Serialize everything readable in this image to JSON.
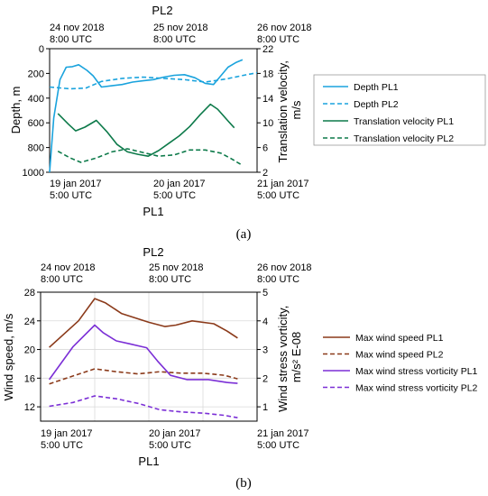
{
  "panel_a": {
    "caption": "(a)",
    "top_axis_label": "PL2",
    "bottom_axis_label": "PL1",
    "top_ticks": [
      {
        "line1": "24 nov 2018",
        "line2": "8:00 UTC"
      },
      {
        "line1": "25 nov 2018",
        "line2": "8:00 UTC"
      },
      {
        "line1": "26 nov 2018",
        "line2": "8:00 UTC"
      }
    ],
    "bottom_ticks": [
      {
        "line1": "19 jan 2017",
        "line2": "5:00 UTC"
      },
      {
        "line1": "20 jan 2017",
        "line2": "5:00 UTC"
      },
      {
        "line1": "21 jan 2017",
        "line2": "5:00 UTC"
      }
    ]
  },
  "panel_b": {
    "caption": "(b)",
    "top_axis_label": "PL2",
    "bottom_axis_label": "PL1",
    "top_ticks": [
      {
        "line1": "24 nov 2018",
        "line2": "8:00 UTC"
      },
      {
        "line1": "25 nov 2018",
        "line2": "8:00 UTC"
      },
      {
        "line1": "26 nov 2018",
        "line2": "8:00 UTC"
      }
    ],
    "bottom_ticks": [
      {
        "line1": "19 jan 2017",
        "line2": "5:00 UTC"
      },
      {
        "line1": "20 jan 2017",
        "line2": "5:00 UTC"
      },
      {
        "line1": "21 jan 2017",
        "line2": "5:00 UTC"
      }
    ]
  },
  "chart_data": [
    {
      "type": "line",
      "x_unit": "days after 19 jan 2017 5:00 UTC (PL1) / 24 nov 2018 8:00 UTC (PL2)",
      "xlim": [
        0,
        2
      ],
      "ylabel": "Depth, m",
      "ylim": [
        0,
        1000
      ],
      "y_inverted": true,
      "yticks": [
        0,
        200,
        400,
        600,
        800,
        1000
      ],
      "y2label": "Translation velocity, m/s",
      "y2lim": [
        2,
        22
      ],
      "y2ticks": [
        2,
        6,
        10,
        14,
        18,
        22
      ],
      "grid": false,
      "legend_position": "right",
      "series": [
        {
          "name": "Depth  PL1",
          "axis": "left",
          "color": "#1aa3dd",
          "dash": "solid",
          "x": [
            0.0,
            0.04,
            0.1,
            0.16,
            0.22,
            0.28,
            0.36,
            0.42,
            0.5,
            0.6,
            0.7,
            0.8,
            0.9,
            1.0,
            1.1,
            1.2,
            1.3,
            1.4,
            1.5,
            1.58,
            1.64,
            1.72,
            1.8,
            1.86
          ],
          "y": [
            1000,
            560,
            250,
            150,
            145,
            130,
            175,
            220,
            310,
            300,
            290,
            270,
            260,
            250,
            230,
            215,
            210,
            235,
            280,
            290,
            230,
            150,
            110,
            90
          ]
        },
        {
          "name": "Depth  PL2",
          "axis": "left",
          "color": "#1aa3dd",
          "dash": "dashed",
          "x": [
            0.0,
            0.2,
            0.35,
            0.5,
            0.7,
            0.9,
            1.1,
            1.3,
            1.5,
            1.7,
            1.9,
            2.0
          ],
          "y": [
            310,
            325,
            318,
            265,
            240,
            230,
            240,
            250,
            270,
            245,
            210,
            195
          ]
        },
        {
          "name": "Translation velocity PL1",
          "axis": "right",
          "color": "#0d7a4a",
          "dash": "solid",
          "x": [
            0.08,
            0.18,
            0.25,
            0.34,
            0.45,
            0.55,
            0.65,
            0.75,
            0.85,
            0.95,
            1.05,
            1.15,
            1.25,
            1.35,
            1.45,
            1.55,
            1.62,
            1.72,
            1.78
          ],
          "y": [
            11.5,
            9.8,
            8.7,
            9.3,
            10.4,
            8.6,
            6.5,
            5.3,
            4.9,
            4.6,
            5.5,
            6.7,
            7.9,
            9.4,
            11.3,
            13.0,
            12.2,
            10.3,
            9.2
          ]
        },
        {
          "name": "Translation velocity PL2",
          "axis": "right",
          "color": "#0d7a4a",
          "dash": "dashed",
          "x": [
            0.08,
            0.2,
            0.3,
            0.45,
            0.6,
            0.75,
            0.9,
            1.05,
            1.2,
            1.35,
            1.5,
            1.65,
            1.75,
            1.85
          ],
          "y": [
            5.4,
            4.3,
            3.6,
            4.3,
            5.3,
            5.8,
            5.2,
            4.6,
            4.8,
            5.6,
            5.6,
            5.1,
            4.2,
            3.2
          ]
        }
      ]
    },
    {
      "type": "line",
      "x_unit": "days after 19 jan 2017 5:00 UTC (PL1) / 24 nov 2018 8:00 UTC (PL2)",
      "xlim": [
        0,
        2
      ],
      "ylabel": "Wind speed, m/s",
      "ylim": [
        10,
        28
      ],
      "yticks": [
        12,
        16,
        20,
        24,
        28
      ],
      "y2label": "Wind stress vorticity, m/s² E-08",
      "y2lim": [
        0.5,
        5
      ],
      "y2ticks": [
        1,
        2,
        3,
        4,
        5
      ],
      "grid": true,
      "legend_position": "right",
      "series": [
        {
          "name": "Max wind speed PL1",
          "axis": "left",
          "color": "#8b3a1a",
          "dash": "solid",
          "x": [
            0.08,
            0.35,
            0.5,
            0.6,
            0.75,
            1.0,
            1.15,
            1.25,
            1.4,
            1.6,
            1.72,
            1.82
          ],
          "y": [
            20.3,
            24.0,
            27.1,
            26.5,
            25.0,
            23.8,
            23.2,
            23.4,
            24.0,
            23.6,
            22.6,
            21.6
          ]
        },
        {
          "name": "Max wind speed PL2",
          "axis": "left",
          "color": "#8b3a1a",
          "dash": "dashed",
          "x": [
            0.08,
            0.3,
            0.5,
            0.7,
            0.9,
            1.1,
            1.3,
            1.5,
            1.7,
            1.82
          ],
          "y": [
            15.2,
            16.3,
            17.3,
            16.9,
            16.6,
            16.9,
            16.7,
            16.7,
            16.4,
            15.9
          ]
        },
        {
          "name": "Max wind stress vorticity PL1",
          "axis": "right",
          "color": "#7b2fd6",
          "dash": "solid",
          "x": [
            0.08,
            0.3,
            0.5,
            0.58,
            0.7,
            0.82,
            0.98,
            1.08,
            1.2,
            1.35,
            1.55,
            1.72,
            1.82
          ],
          "y": [
            1.95,
            3.1,
            3.85,
            3.58,
            3.3,
            3.2,
            3.06,
            2.6,
            2.1,
            1.95,
            1.95,
            1.85,
            1.82
          ]
        },
        {
          "name": "Max wind stress vorticity PL2",
          "axis": "right",
          "color": "#7b2fd6",
          "dash": "dashed",
          "x": [
            0.08,
            0.3,
            0.5,
            0.7,
            0.9,
            1.1,
            1.3,
            1.5,
            1.7,
            1.82
          ],
          "y": [
            1.02,
            1.15,
            1.38,
            1.28,
            1.12,
            0.9,
            0.82,
            0.78,
            0.7,
            0.62
          ]
        }
      ]
    }
  ]
}
